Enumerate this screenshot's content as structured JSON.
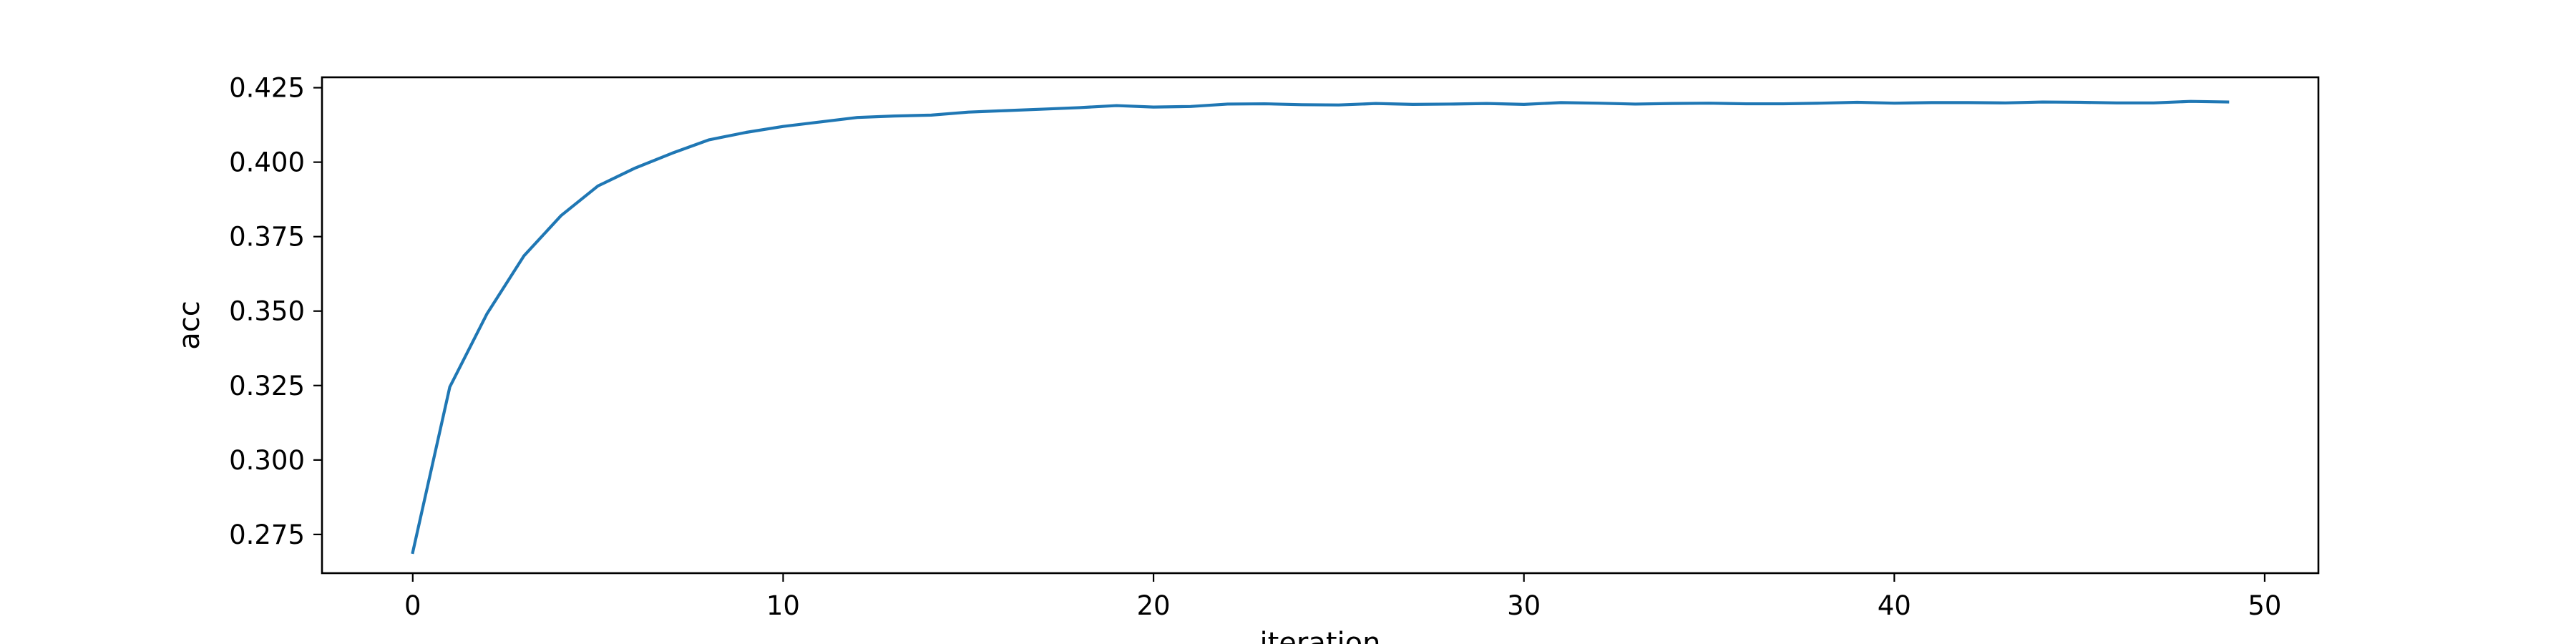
{
  "chart_data": {
    "type": "line",
    "title": "",
    "xlabel": "iteration",
    "ylabel": "acc",
    "xlim": [
      -2.45,
      51.45
    ],
    "ylim": [
      0.262,
      0.4285
    ],
    "xticks": [
      0,
      10,
      20,
      30,
      40,
      50
    ],
    "xtick_labels": [
      "0",
      "10",
      "20",
      "30",
      "40",
      "50"
    ],
    "yticks": [
      0.275,
      0.3,
      0.325,
      0.35,
      0.375,
      0.4,
      0.425
    ],
    "ytick_labels": [
      "0.275",
      "0.300",
      "0.325",
      "0.350",
      "0.375",
      "0.400",
      "0.425"
    ],
    "grid": false,
    "legend": "none",
    "series": [
      {
        "color": "#1f77b4",
        "x": [
          0,
          1,
          2,
          3,
          4,
          5,
          6,
          7,
          8,
          9,
          10,
          11,
          12,
          13,
          14,
          15,
          16,
          17,
          18,
          19,
          20,
          21,
          22,
          23,
          24,
          25,
          26,
          27,
          28,
          29,
          30,
          31,
          32,
          33,
          34,
          35,
          36,
          37,
          38,
          39,
          40,
          41,
          42,
          43,
          44,
          45,
          46,
          47,
          48,
          49
        ],
        "y": [
          0.269,
          0.3245,
          0.349,
          0.3685,
          0.382,
          0.392,
          0.398,
          0.403,
          0.4075,
          0.41,
          0.412,
          0.4135,
          0.415,
          0.4155,
          0.4158,
          0.4168,
          0.4173,
          0.4178,
          0.4183,
          0.419,
          0.4185,
          0.4187,
          0.4195,
          0.4196,
          0.4193,
          0.4192,
          0.4197,
          0.4194,
          0.4195,
          0.4197,
          0.4194,
          0.42,
          0.4198,
          0.4195,
          0.4197,
          0.4198,
          0.4196,
          0.4196,
          0.4198,
          0.4201,
          0.4198,
          0.42,
          0.42,
          0.4199,
          0.4202,
          0.4201,
          0.4199,
          0.4199,
          0.4204,
          0.4202
        ]
      }
    ]
  }
}
